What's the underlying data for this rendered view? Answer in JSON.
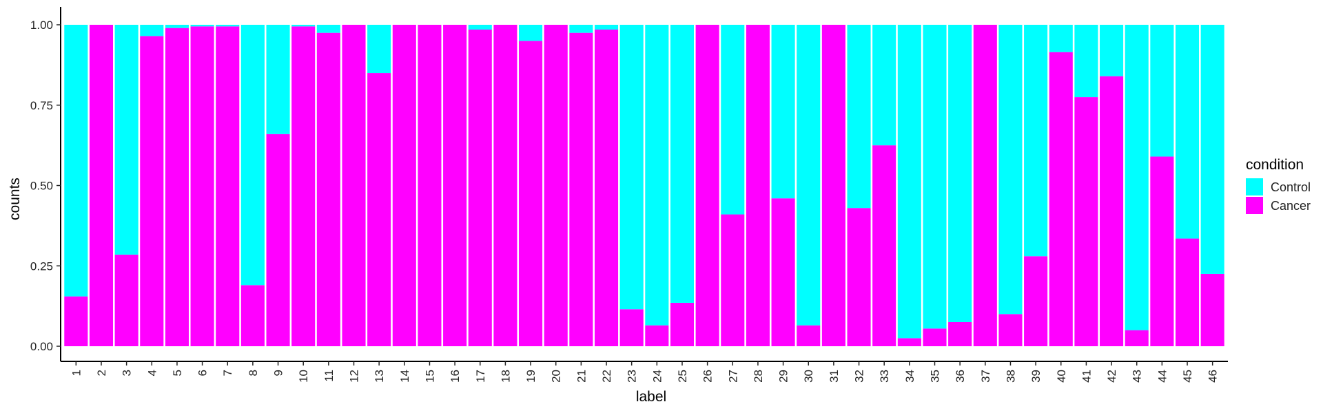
{
  "chart_data": {
    "type": "bar",
    "stacked": true,
    "normalized": true,
    "xlabel": "label",
    "ylabel": "counts",
    "ylim": [
      0,
      1
    ],
    "yticks": [
      "0.00",
      "0.25",
      "0.50",
      "0.75",
      "1.00"
    ],
    "categories": [
      "1",
      "2",
      "3",
      "4",
      "5",
      "6",
      "7",
      "8",
      "9",
      "10",
      "11",
      "12",
      "13",
      "14",
      "15",
      "16",
      "17",
      "18",
      "19",
      "20",
      "21",
      "22",
      "23",
      "24",
      "25",
      "26",
      "27",
      "28",
      "29",
      "30",
      "31",
      "32",
      "33",
      "34",
      "35",
      "36",
      "37",
      "38",
      "39",
      "40",
      "41",
      "42",
      "43",
      "44",
      "45",
      "46"
    ],
    "series": [
      {
        "name": "Control",
        "color": "#00FFFF",
        "values": [
          0.845,
          0.0,
          0.715,
          0.035,
          0.01,
          0.005,
          0.005,
          0.81,
          0.34,
          0.005,
          0.025,
          0.0,
          0.15,
          0.0,
          0.0,
          0.0,
          0.015,
          0.0,
          0.05,
          0.0,
          0.025,
          0.015,
          0.885,
          0.935,
          0.865,
          0.0,
          0.59,
          0.0,
          0.54,
          0.935,
          0.0,
          0.57,
          0.375,
          0.975,
          0.945,
          0.925,
          0.0,
          0.9,
          0.72,
          0.085,
          0.225,
          0.16,
          0.95,
          0.41,
          0.665,
          0.775
        ]
      },
      {
        "name": "Cancer",
        "color": "#FF00FF",
        "values": [
          0.155,
          1.0,
          0.285,
          0.965,
          0.99,
          0.995,
          0.995,
          0.19,
          0.66,
          0.995,
          0.975,
          1.0,
          0.85,
          1.0,
          1.0,
          1.0,
          0.985,
          1.0,
          0.95,
          1.0,
          0.975,
          0.985,
          0.115,
          0.065,
          0.135,
          1.0,
          0.41,
          1.0,
          0.46,
          0.065,
          1.0,
          0.43,
          0.625,
          0.025,
          0.055,
          0.075,
          1.0,
          0.1,
          0.28,
          0.915,
          0.775,
          0.84,
          0.05,
          0.59,
          0.335,
          0.225
        ]
      }
    ],
    "legend": {
      "title": "condition",
      "position": "right"
    },
    "grid": false
  }
}
